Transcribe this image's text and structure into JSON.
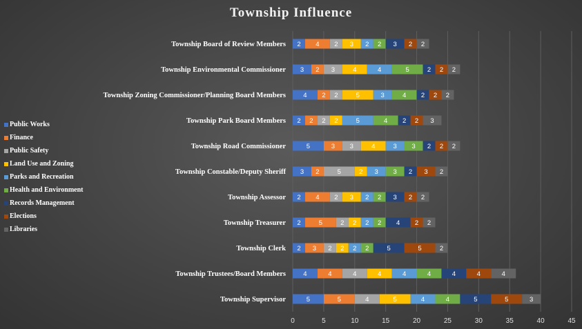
{
  "chart_data": {
    "type": "bar",
    "orientation": "horizontal",
    "stacked": true,
    "title": "Township Influence",
    "xlabel": "",
    "ylabel": "",
    "xlim": [
      0,
      45
    ],
    "x_ticks": [
      0,
      5,
      10,
      15,
      20,
      25,
      30,
      35,
      40,
      45
    ],
    "grid": true,
    "legend_position": "left",
    "categories": [
      "Township Board of Review Members",
      "Township Environmental Commissioner",
      "Township Zoning Commissioner/Planning Board Members",
      "Township Park Board Members",
      "Township Road Commissioner",
      "Township Constable/Deputy Sheriff",
      "Township Assessor",
      "Township Treasurer",
      "Township Clerk",
      "Township Trustees/Board Members",
      "Township Supervisor"
    ],
    "series": [
      {
        "name": "Public Works",
        "color": "#4472c4",
        "values": [
          2,
          3,
          4,
          2,
          5,
          3,
          2,
          2,
          2,
          4,
          5
        ]
      },
      {
        "name": "Finance",
        "color": "#ed7d31",
        "values": [
          4,
          2,
          2,
          2,
          3,
          2,
          4,
          5,
          3,
          4,
          5
        ]
      },
      {
        "name": "Public Safety",
        "color": "#a5a5a5",
        "values": [
          2,
          3,
          2,
          2,
          3,
          5,
          2,
          2,
          2,
          4,
          4
        ]
      },
      {
        "name": "Land Use and Zoning",
        "color": "#ffc000",
        "values": [
          3,
          4,
          5,
          2,
          4,
          2,
          3,
          2,
          2,
          4,
          5
        ]
      },
      {
        "name": "Parks and Recreation",
        "color": "#5b9bd5",
        "values": [
          2,
          4,
          3,
          5,
          3,
          3,
          2,
          2,
          2,
          4,
          4
        ]
      },
      {
        "name": "Health and Environment",
        "color": "#70ad47",
        "values": [
          2,
          5,
          4,
          4,
          3,
          3,
          2,
          2,
          2,
          4,
          4
        ]
      },
      {
        "name": "Records Management",
        "color": "#264478",
        "values": [
          3,
          2,
          2,
          2,
          2,
          2,
          3,
          4,
          5,
          4,
          5
        ]
      },
      {
        "name": "Elections",
        "color": "#9e480e",
        "values": [
          2,
          2,
          2,
          2,
          2,
          3,
          2,
          2,
          5,
          4,
          5
        ]
      },
      {
        "name": "Libraries",
        "color": "#636363",
        "values": [
          2,
          2,
          2,
          3,
          2,
          2,
          2,
          2,
          2,
          4,
          3
        ]
      }
    ]
  }
}
